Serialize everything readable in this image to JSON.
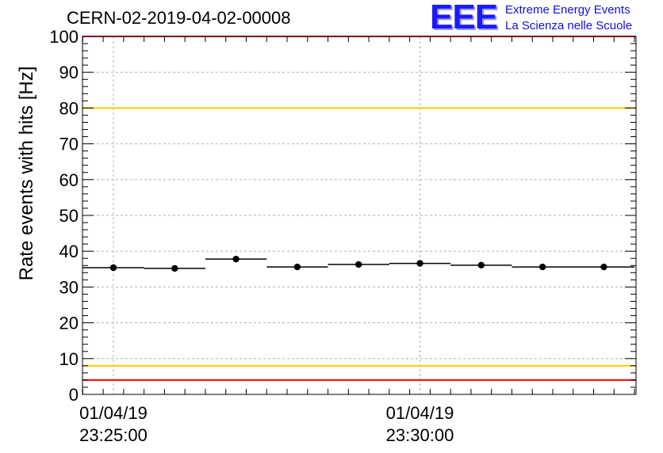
{
  "title": "CERN-02-2019-04-02-00008",
  "logo": {
    "mark": "EEE",
    "line1": "Extreme Energy Events",
    "line2": "La Scienza nelle Scuole"
  },
  "chart_data": {
    "type": "scatter",
    "ylabel": "Rate events with hits [Hz]",
    "ylim": [
      0,
      100
    ],
    "yticks": [
      "0",
      "10",
      "20",
      "30",
      "40",
      "50",
      "60",
      "70",
      "80",
      "90",
      "100"
    ],
    "xtick_labels": [
      {
        "date": "01/04/19",
        "time": "23:25:00"
      },
      {
        "date": "01/04/19",
        "time": "23:30:00"
      }
    ],
    "grid": true,
    "points": [
      {
        "x": "23:25:00",
        "y": 35.4
      },
      {
        "x": "23:26:00",
        "y": 35.2
      },
      {
        "x": "23:27:00",
        "y": 37.8
      },
      {
        "x": "23:28:00",
        "y": 35.6
      },
      {
        "x": "23:29:00",
        "y": 36.3
      },
      {
        "x": "23:30:00",
        "y": 36.6
      },
      {
        "x": "23:31:00",
        "y": 36.1
      },
      {
        "x": "23:32:00",
        "y": 35.6
      },
      {
        "x": "23:33:00",
        "y": 35.6
      }
    ],
    "reference_lines": [
      {
        "y": 100,
        "color": "#ff0000"
      },
      {
        "y": 80,
        "color": "#ffcc00"
      },
      {
        "y": 8,
        "color": "#ffcc00"
      },
      {
        "y": 4,
        "color": "#ff0000"
      }
    ]
  }
}
